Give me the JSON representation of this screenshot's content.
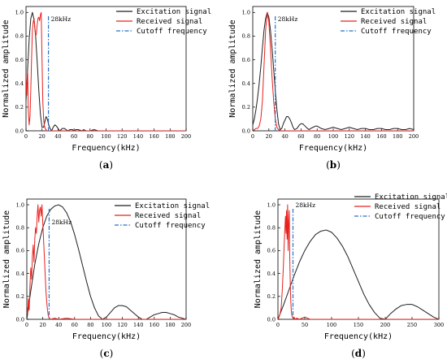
{
  "legend": {
    "excitation": "Excitation signal",
    "received": "Received signal",
    "cutoff": "Cutoff frequency"
  },
  "colors": {
    "excitation": "#1f1f1f",
    "received": "#e8211d",
    "cutoff": "#2870c8"
  },
  "chart_data": [
    {
      "panel": "a",
      "type": "line",
      "caption": "(a)",
      "xlabel": "Frequency(kHz)",
      "ylabel": "Normalized amplitude",
      "xlim": [
        0,
        200
      ],
      "ylim": [
        0,
        1.05
      ],
      "xticks": [
        0,
        20,
        40,
        60,
        80,
        100,
        120,
        140,
        160,
        180,
        200
      ],
      "yticks": [
        0.0,
        0.2,
        0.4,
        0.6,
        0.8,
        1.0
      ],
      "legend_position": "top-right",
      "cutoff": {
        "x": 28,
        "label": "28kHz"
      },
      "series": [
        {
          "name": "Excitation signal",
          "key": "excitation",
          "x": [
            0,
            2,
            4,
            6,
            8,
            10,
            12,
            14,
            16,
            18,
            20,
            22,
            24,
            25,
            26,
            27,
            28,
            30,
            32,
            34,
            35,
            36,
            38,
            40,
            42,
            44,
            45,
            48,
            50,
            52,
            55,
            58,
            60,
            62,
            65,
            70,
            72,
            75,
            80,
            85,
            90,
            100,
            110,
            120,
            130,
            140,
            150,
            160,
            170,
            180,
            190,
            200
          ],
          "y": [
            0.25,
            0.52,
            0.78,
            0.95,
            1.0,
            0.94,
            0.8,
            0.58,
            0.34,
            0.14,
            0.03,
            0.03,
            0.09,
            0.12,
            0.11,
            0.09,
            0.06,
            0.02,
            0.0,
            0.03,
            0.04,
            0.05,
            0.04,
            0.02,
            0.0,
            0.01,
            0.02,
            0.02,
            0.01,
            0.0,
            0.01,
            0.01,
            0.0,
            0.01,
            0.01,
            0.0,
            0.01,
            0.0,
            0.0,
            0.01,
            0.0,
            0.0,
            0.0,
            0.0,
            0.0,
            0.0,
            0.0,
            0.0,
            0.0,
            0.0,
            0.0,
            0.0
          ]
        },
        {
          "name": "Received signal",
          "key": "received",
          "x": [
            0,
            1,
            2,
            3,
            4,
            5,
            6,
            7,
            8,
            9,
            10,
            11,
            12,
            13,
            14,
            15,
            16,
            17,
            18,
            19,
            20,
            21,
            22,
            23,
            24,
            25,
            26,
            27,
            28,
            30,
            32,
            35,
            40,
            50,
            60,
            80,
            100,
            150,
            200
          ],
          "y": [
            0.45,
            0.3,
            0.5,
            0.15,
            0.05,
            0.12,
            0.35,
            0.62,
            0.85,
            0.92,
            0.95,
            0.88,
            0.8,
            0.82,
            0.9,
            0.95,
            0.96,
            0.93,
            0.98,
            1.0,
            0.6,
            0.25,
            0.1,
            0.04,
            0.02,
            0.01,
            0.0,
            0.0,
            0.0,
            0.0,
            0.0,
            0.0,
            0.0,
            0.0,
            0.0,
            0.0,
            0.0,
            0.0,
            0.0
          ]
        }
      ]
    },
    {
      "panel": "b",
      "type": "line",
      "caption": "(b)",
      "xlabel": "Frequency(kHz)",
      "ylabel": "Normalized amplitude",
      "xlim": [
        0,
        200
      ],
      "ylim": [
        0,
        1.05
      ],
      "xticks": [
        0,
        20,
        40,
        60,
        80,
        100,
        120,
        140,
        160,
        180,
        200
      ],
      "yticks": [
        0.0,
        0.2,
        0.4,
        0.6,
        0.8,
        1.0
      ],
      "legend_position": "top-right",
      "cutoff": {
        "x": 28,
        "label": "28kHz"
      },
      "series": [
        {
          "name": "Excitation signal",
          "key": "excitation",
          "x": [
            0,
            2,
            4,
            6,
            8,
            10,
            12,
            14,
            16,
            18,
            20,
            22,
            24,
            26,
            28,
            30,
            32,
            34,
            36,
            38,
            40,
            42,
            44,
            46,
            48,
            50,
            52,
            55,
            58,
            60,
            62,
            65,
            68,
            70,
            72,
            75,
            78,
            80,
            85,
            90,
            95,
            100,
            105,
            110,
            115,
            120,
            125,
            130,
            135,
            140,
            145,
            150,
            155,
            160,
            165,
            170,
            175,
            180,
            185,
            190,
            195,
            200
          ],
          "y": [
            0.05,
            0.1,
            0.18,
            0.28,
            0.4,
            0.54,
            0.7,
            0.85,
            0.95,
            1.0,
            0.96,
            0.85,
            0.7,
            0.52,
            0.34,
            0.18,
            0.06,
            0.01,
            0.02,
            0.06,
            0.09,
            0.12,
            0.12,
            0.1,
            0.07,
            0.03,
            0.01,
            0.02,
            0.05,
            0.06,
            0.06,
            0.04,
            0.02,
            0.01,
            0.02,
            0.03,
            0.04,
            0.04,
            0.02,
            0.01,
            0.02,
            0.03,
            0.02,
            0.01,
            0.02,
            0.03,
            0.02,
            0.01,
            0.02,
            0.02,
            0.01,
            0.01,
            0.02,
            0.02,
            0.01,
            0.01,
            0.02,
            0.02,
            0.01,
            0.01,
            0.02,
            0.01
          ]
        },
        {
          "name": "Received signal",
          "key": "received",
          "x": [
            0,
            2,
            4,
            6,
            8,
            10,
            12,
            14,
            16,
            18,
            20,
            22,
            24,
            26,
            28,
            30,
            32,
            35,
            40,
            50,
            60,
            80,
            100,
            150,
            200
          ],
          "y": [
            0.0,
            0.01,
            0.02,
            0.02,
            0.04,
            0.1,
            0.25,
            0.55,
            0.85,
            1.0,
            0.92,
            0.7,
            0.45,
            0.25,
            0.1,
            0.03,
            0.01,
            0.0,
            0.0,
            0.0,
            0.0,
            0.0,
            0.0,
            0.0,
            0.0
          ]
        }
      ]
    },
    {
      "panel": "c",
      "type": "line",
      "caption": "(c)",
      "xlabel": "Frequency(kHz)",
      "ylabel": "Normalized amplitude",
      "xlim": [
        0,
        200
      ],
      "ylim": [
        0,
        1.05
      ],
      "xticks": [
        0,
        20,
        40,
        60,
        80,
        100,
        120,
        140,
        160,
        180,
        200
      ],
      "yticks": [
        0.0,
        0.2,
        0.4,
        0.6,
        0.8,
        1.0
      ],
      "legend_position": "top-right",
      "cutoff": {
        "x": 28,
        "label": "28kHz"
      },
      "series": [
        {
          "name": "Excitation signal",
          "key": "excitation",
          "x": [
            0,
            5,
            10,
            15,
            20,
            25,
            30,
            35,
            40,
            45,
            50,
            55,
            60,
            65,
            70,
            75,
            80,
            85,
            90,
            95,
            100,
            105,
            110,
            115,
            120,
            125,
            130,
            135,
            140,
            145,
            150,
            155,
            160,
            165,
            170,
            175,
            180,
            185,
            190,
            195,
            200
          ],
          "y": [
            0.0,
            0.25,
            0.48,
            0.66,
            0.8,
            0.9,
            0.96,
            0.99,
            1.0,
            0.98,
            0.93,
            0.85,
            0.74,
            0.61,
            0.47,
            0.33,
            0.2,
            0.1,
            0.03,
            0.0,
            0.02,
            0.06,
            0.1,
            0.12,
            0.12,
            0.11,
            0.08,
            0.05,
            0.02,
            0.0,
            0.0,
            0.02,
            0.04,
            0.05,
            0.06,
            0.06,
            0.05,
            0.04,
            0.02,
            0.01,
            0.0
          ]
        },
        {
          "name": "Received signal",
          "key": "received",
          "x": [
            0,
            1,
            2,
            3,
            4,
            5,
            6,
            7,
            8,
            9,
            10,
            11,
            12,
            13,
            14,
            15,
            16,
            17,
            18,
            19,
            20,
            21,
            22,
            23,
            24,
            25,
            26,
            27,
            28,
            30,
            35,
            40,
            50,
            60,
            80,
            100,
            150,
            200
          ],
          "y": [
            0.12,
            0.05,
            0.18,
            0.08,
            0.3,
            0.45,
            0.35,
            0.55,
            0.65,
            0.5,
            0.7,
            0.8,
            0.75,
            0.9,
            1.0,
            0.85,
            0.95,
            0.98,
            0.9,
            1.0,
            0.85,
            0.7,
            0.55,
            0.4,
            0.25,
            0.15,
            0.08,
            0.03,
            0.01,
            0.0,
            0.01,
            0.0,
            0.01,
            0.0,
            0.0,
            0.0,
            0.0,
            0.0
          ]
        }
      ]
    },
    {
      "panel": "d",
      "type": "line",
      "caption": "(d)",
      "xlabel": "Frequency(kHz)",
      "ylabel": "Normalized amplitude",
      "xlim": [
        0,
        300
      ],
      "ylim": [
        0,
        1.05
      ],
      "xticks": [
        0,
        50,
        100,
        150,
        200,
        250,
        300
      ],
      "yticks": [
        0.0,
        0.2,
        0.4,
        0.6,
        0.8,
        1.0
      ],
      "legend_position": "top-right",
      "cutoff": {
        "x": 28,
        "label": "28kHz"
      },
      "series": [
        {
          "name": "Excitation signal",
          "key": "excitation",
          "x": [
            0,
            10,
            20,
            30,
            40,
            50,
            60,
            70,
            80,
            90,
            100,
            110,
            120,
            130,
            140,
            150,
            160,
            170,
            180,
            190,
            200,
            210,
            220,
            230,
            240,
            250,
            260,
            270,
            280,
            290,
            300
          ],
          "y": [
            0.0,
            0.12,
            0.25,
            0.38,
            0.5,
            0.6,
            0.68,
            0.74,
            0.77,
            0.78,
            0.76,
            0.71,
            0.64,
            0.55,
            0.44,
            0.33,
            0.22,
            0.13,
            0.06,
            0.01,
            0.0,
            0.05,
            0.09,
            0.12,
            0.13,
            0.13,
            0.11,
            0.08,
            0.05,
            0.02,
            0.0
          ]
        },
        {
          "name": "Received signal",
          "key": "received",
          "x": [
            0,
            2,
            4,
            6,
            8,
            10,
            12,
            14,
            15,
            16,
            17,
            18,
            19,
            20,
            21,
            22,
            23,
            24,
            25,
            26,
            27,
            28,
            29,
            30,
            32,
            35,
            40,
            50,
            60,
            80,
            100,
            150,
            200,
            300
          ],
          "y": [
            0.0,
            0.02,
            0.05,
            0.1,
            0.25,
            0.45,
            0.7,
            0.9,
            0.75,
            0.95,
            0.7,
            1.0,
            0.6,
            0.85,
            0.95,
            0.55,
            0.3,
            0.15,
            0.07,
            0.03,
            0.02,
            0.01,
            0.0,
            0.02,
            0.0,
            0.01,
            0.0,
            0.02,
            0.0,
            0.0,
            0.0,
            0.0,
            0.0,
            0.0
          ]
        }
      ]
    }
  ]
}
